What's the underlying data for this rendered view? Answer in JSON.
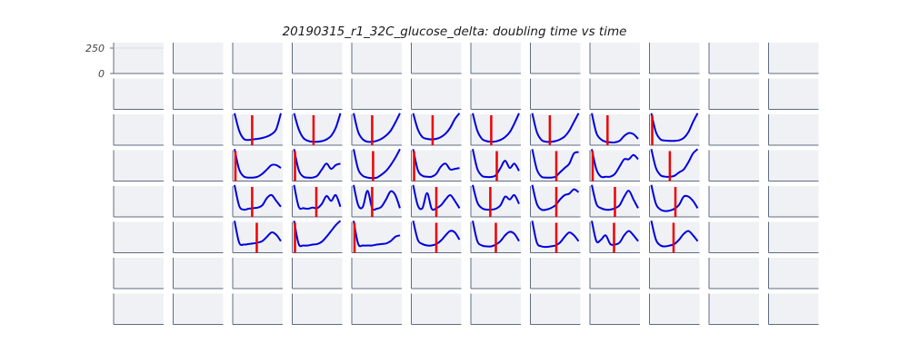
{
  "chart_data": {
    "type": "line",
    "title": "20190315_r1_32C_glucose_delta: doubling time vs time",
    "layout": "small-multiples grid",
    "rows": 8,
    "cols": 12,
    "xlabel": "",
    "ylabel": "",
    "y_ticks": [
      "250",
      "0"
    ],
    "grid": false,
    "colors": {
      "panel_bg": "#eff1f5",
      "axis": "#5d6c80",
      "curve": "#0000dd",
      "marker": "#ee0000"
    },
    "x": [
      0,
      0.1,
      0.2,
      0.3,
      0.4,
      0.5,
      0.6,
      0.7,
      0.8,
      0.9,
      1.0
    ],
    "panels": [
      {
        "row": 2,
        "col": 2,
        "y": [
          1.1,
          0.5,
          0.22,
          0.18,
          0.2,
          0.22,
          0.25,
          0.3,
          0.38,
          0.55,
          1.1
        ],
        "marker_x": 0.38
      },
      {
        "row": 2,
        "col": 3,
        "y": [
          1.1,
          0.55,
          0.25,
          0.15,
          0.12,
          0.12,
          0.14,
          0.2,
          0.32,
          0.6,
          1.1
        ],
        "marker_x": 0.42
      },
      {
        "row": 2,
        "col": 4,
        "y": [
          1.1,
          0.45,
          0.2,
          0.12,
          0.12,
          0.15,
          0.22,
          0.33,
          0.5,
          0.78,
          1.1
        ],
        "marker_x": 0.4
      },
      {
        "row": 2,
        "col": 5,
        "y": [
          1.1,
          0.55,
          0.28,
          0.22,
          0.2,
          0.22,
          0.28,
          0.4,
          0.6,
          0.9,
          1.1
        ],
        "marker_x": 0.42
      },
      {
        "row": 2,
        "col": 6,
        "y": [
          1.1,
          0.5,
          0.22,
          0.14,
          0.12,
          0.13,
          0.18,
          0.28,
          0.45,
          0.75,
          1.1
        ],
        "marker_x": 0.4
      },
      {
        "row": 2,
        "col": 7,
        "y": [
          1.1,
          0.45,
          0.18,
          0.12,
          0.12,
          0.14,
          0.2,
          0.3,
          0.5,
          0.8,
          1.1
        ],
        "marker_x": 0.38
      },
      {
        "row": 2,
        "col": 8,
        "y": [
          1.1,
          0.42,
          0.2,
          0.12,
          0.1,
          0.1,
          0.15,
          0.32,
          0.42,
          0.38,
          0.22
        ],
        "marker_x": 0.34
      },
      {
        "row": 2,
        "col": 9,
        "y": [
          1.1,
          0.45,
          0.2,
          0.16,
          0.15,
          0.15,
          0.17,
          0.25,
          0.45,
          0.8,
          1.1
        ],
        "marker_x": 0.02
      },
      {
        "row": 3,
        "col": 2,
        "y": [
          1.1,
          0.4,
          0.16,
          0.12,
          0.12,
          0.15,
          0.25,
          0.4,
          0.55,
          0.55,
          0.45
        ],
        "marker_x": 0.02
      },
      {
        "row": 3,
        "col": 3,
        "y": [
          1.1,
          0.38,
          0.15,
          0.12,
          0.12,
          0.18,
          0.4,
          0.6,
          0.42,
          0.55,
          0.6
        ],
        "marker_x": 0.02
      },
      {
        "row": 3,
        "col": 4,
        "y": [
          1.1,
          0.4,
          0.18,
          0.12,
          0.1,
          0.12,
          0.22,
          0.35,
          0.55,
          0.8,
          1.1
        ],
        "marker_x": 0.42
      },
      {
        "row": 3,
        "col": 5,
        "y": [
          1.1,
          0.38,
          0.18,
          0.15,
          0.15,
          0.25,
          0.5,
          0.6,
          0.4,
          0.42,
          0.45
        ],
        "marker_x": 0.02
      },
      {
        "row": 3,
        "col": 6,
        "y": [
          1.1,
          0.42,
          0.18,
          0.14,
          0.14,
          0.2,
          0.45,
          0.7,
          0.45,
          0.6,
          0.35
        ],
        "marker_x": 0.52
      },
      {
        "row": 3,
        "col": 7,
        "y": [
          1.1,
          0.4,
          0.15,
          0.12,
          0.12,
          0.15,
          0.3,
          0.45,
          0.6,
          0.95,
          1.0
        ],
        "marker_x": 0.52
      },
      {
        "row": 3,
        "col": 8,
        "y": [
          1.1,
          0.4,
          0.15,
          0.15,
          0.15,
          0.25,
          0.5,
          0.75,
          0.75,
          0.9,
          0.75
        ],
        "marker_x": 0.02
      },
      {
        "row": 3,
        "col": 9,
        "y": [
          1.1,
          0.45,
          0.2,
          0.15,
          0.15,
          0.18,
          0.3,
          0.4,
          0.65,
          0.95,
          1.1
        ],
        "marker_x": 0.4
      },
      {
        "row": 4,
        "col": 2,
        "y": [
          1.1,
          0.38,
          0.25,
          0.28,
          0.3,
          0.32,
          0.4,
          0.65,
          0.75,
          0.55,
          0.35
        ],
        "marker_x": 0.38
      },
      {
        "row": 4,
        "col": 3,
        "y": [
          1.1,
          0.35,
          0.3,
          0.28,
          0.32,
          0.3,
          0.45,
          0.72,
          0.55,
          0.75,
          0.35
        ],
        "marker_x": 0.48
      },
      {
        "row": 4,
        "col": 4,
        "y": [
          1.1,
          0.4,
          0.35,
          0.9,
          0.3,
          0.28,
          0.35,
          0.6,
          0.88,
          0.75,
          0.3
        ],
        "marker_x": 0.4
      },
      {
        "row": 4,
        "col": 5,
        "y": [
          1.1,
          0.4,
          0.3,
          0.82,
          0.28,
          0.3,
          0.4,
          0.6,
          0.75,
          0.55,
          0.3
        ],
        "marker_x": 0.5
      },
      {
        "row": 4,
        "col": 6,
        "y": [
          1.1,
          0.5,
          0.3,
          0.25,
          0.25,
          0.28,
          0.4,
          0.7,
          0.6,
          0.75,
          0.45
        ],
        "marker_x": 0.38
      },
      {
        "row": 4,
        "col": 7,
        "y": [
          1.1,
          0.45,
          0.25,
          0.25,
          0.3,
          0.4,
          0.6,
          0.75,
          0.8,
          0.95,
          0.85
        ],
        "marker_x": 0.52
      },
      {
        "row": 4,
        "col": 8,
        "y": [
          1.1,
          0.45,
          0.3,
          0.25,
          0.25,
          0.3,
          0.4,
          0.7,
          0.9,
          0.6,
          0.3
        ],
        "marker_x": 0.5
      },
      {
        "row": 4,
        "col": 9,
        "y": [
          1.1,
          0.45,
          0.25,
          0.2,
          0.22,
          0.28,
          0.42,
          0.7,
          0.7,
          0.55,
          0.3
        ],
        "marker_x": 0.52
      },
      {
        "row": 5,
        "col": 2,
        "y": [
          1.1,
          0.35,
          0.28,
          0.3,
          0.32,
          0.35,
          0.4,
          0.55,
          0.7,
          0.62,
          0.4
        ],
        "marker_x": 0.48
      },
      {
        "row": 5,
        "col": 3,
        "y": [
          1.1,
          0.3,
          0.25,
          0.25,
          0.28,
          0.3,
          0.38,
          0.55,
          0.75,
          0.95,
          1.1
        ],
        "marker_x": 0.02
      },
      {
        "row": 5,
        "col": 4,
        "y": [
          1.1,
          0.3,
          0.25,
          0.25,
          0.25,
          0.28,
          0.3,
          0.32,
          0.4,
          0.55,
          0.6
        ],
        "marker_x": 0.02
      },
      {
        "row": 5,
        "col": 5,
        "y": [
          1.1,
          0.45,
          0.3,
          0.25,
          0.25,
          0.3,
          0.42,
          0.6,
          0.75,
          0.7,
          0.45
        ],
        "marker_x": 0.5
      },
      {
        "row": 5,
        "col": 6,
        "y": [
          1.1,
          0.4,
          0.25,
          0.22,
          0.22,
          0.28,
          0.4,
          0.6,
          0.72,
          0.65,
          0.4
        ],
        "marker_x": 0.5
      },
      {
        "row": 5,
        "col": 7,
        "y": [
          1.1,
          0.35,
          0.22,
          0.2,
          0.22,
          0.25,
          0.35,
          0.55,
          0.7,
          0.6,
          0.4
        ],
        "marker_x": 0.52
      },
      {
        "row": 5,
        "col": 8,
        "y": [
          1.1,
          0.4,
          0.45,
          0.6,
          0.3,
          0.28,
          0.35,
          0.6,
          0.75,
          0.6,
          0.4
        ],
        "marker_x": 0.48
      },
      {
        "row": 5,
        "col": 9,
        "y": [
          1.1,
          0.45,
          0.25,
          0.22,
          0.25,
          0.3,
          0.45,
          0.65,
          0.75,
          0.6,
          0.4
        ],
        "marker_x": 0.48
      }
    ]
  }
}
